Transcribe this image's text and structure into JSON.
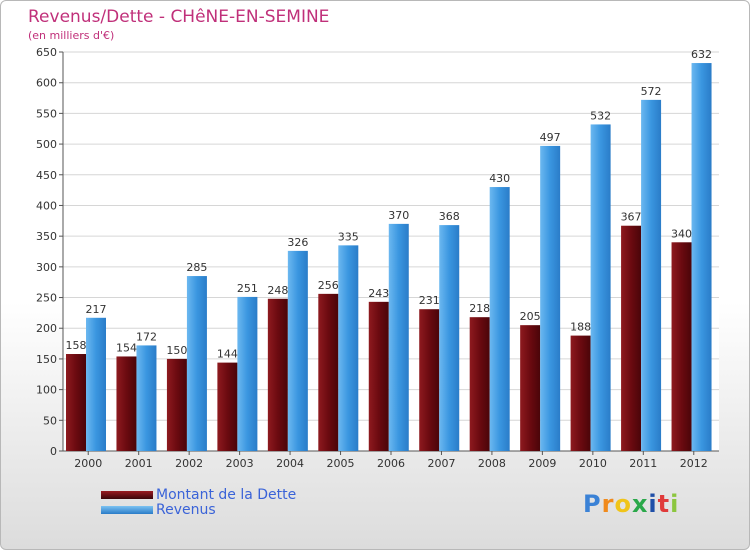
{
  "title": "Revenus/Dette - CHêNE-EN-SEMINE",
  "subtitle": "(en milliers d'€)",
  "logo": {
    "letters": [
      "P",
      "r",
      "o",
      "x",
      "i",
      "t",
      "i"
    ],
    "colors": [
      "#3b82d6",
      "#f08a1c",
      "#f0c419",
      "#2aa84a",
      "#1f4fa8",
      "#e03a3a",
      "#8cc63f"
    ]
  },
  "colors": {
    "dette": "#6b0a10",
    "revenus": "#3a96e0"
  },
  "chart_data": {
    "type": "bar",
    "categories": [
      "2000",
      "2001",
      "2002",
      "2003",
      "2004",
      "2005",
      "2006",
      "2007",
      "2008",
      "2009",
      "2010",
      "2011",
      "2012"
    ],
    "series": [
      {
        "name": "Montant de la Dette",
        "values": [
          158,
          154,
          150,
          144,
          248,
          256,
          243,
          231,
          218,
          205,
          188,
          367,
          340
        ]
      },
      {
        "name": "Revenus",
        "values": [
          217,
          172,
          285,
          251,
          326,
          335,
          370,
          368,
          430,
          497,
          532,
          572,
          632
        ]
      }
    ],
    "ylim": [
      0,
      650
    ],
    "yticks": [
      0,
      50,
      100,
      150,
      200,
      250,
      300,
      350,
      400,
      450,
      500,
      550,
      600,
      650
    ],
    "grid": true,
    "legend": "bottom-left"
  }
}
